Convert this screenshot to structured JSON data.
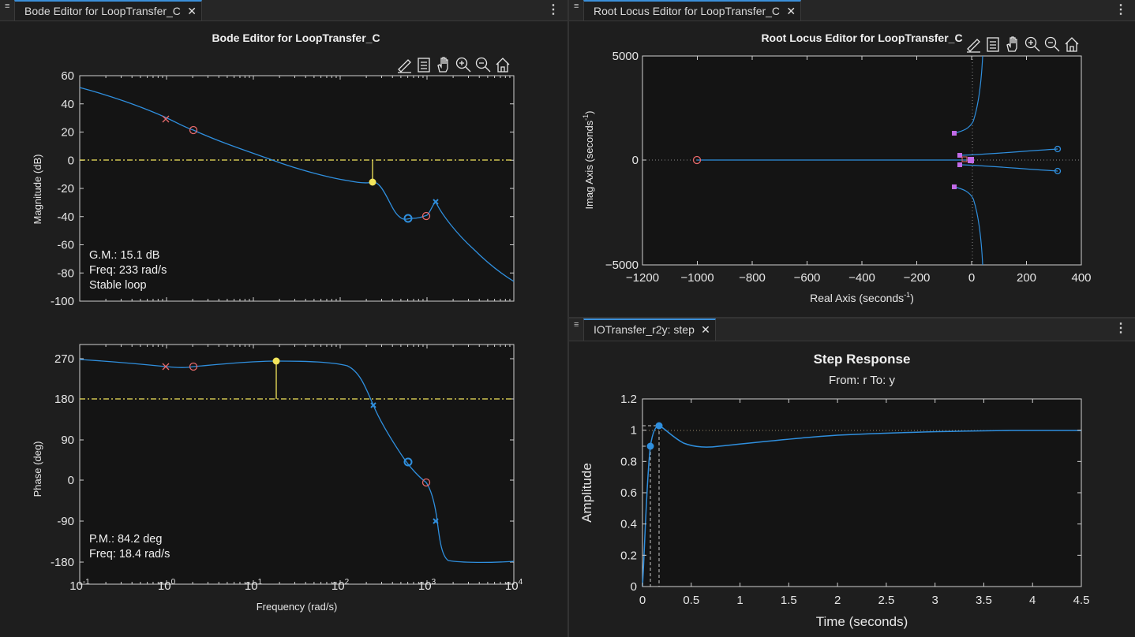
{
  "bode_panel": {
    "tab_label": "Bode Editor for LoopTransfer_C",
    "title": "Bode Editor for LoopTransfer_C",
    "magnitude": {
      "ylabel": "Magnitude (dB)",
      "yticks": [
        "60",
        "40",
        "20",
        "0",
        "-20",
        "-40",
        "-60",
        "-80",
        "-100"
      ],
      "info": [
        "G.M.: 15.1 dB",
        "Freq: 233 rad/s",
        "Stable loop"
      ]
    },
    "phase": {
      "ylabel": "Phase (deg)",
      "yticks": [
        "270",
        "180",
        "90",
        "0",
        "-90",
        "-180"
      ],
      "info": [
        "P.M.: 84.2 deg",
        "Freq: 18.4 rad/s"
      ]
    },
    "xticks": [
      {
        "base": "10",
        "exp": "-1"
      },
      {
        "base": "10",
        "exp": "0"
      },
      {
        "base": "10",
        "exp": "1"
      },
      {
        "base": "10",
        "exp": "2"
      },
      {
        "base": "10",
        "exp": "3"
      },
      {
        "base": "10",
        "exp": "4"
      }
    ],
    "xlabel": "Frequency (rad/s)"
  },
  "rlocus_panel": {
    "tab_label": "Root Locus Editor for LoopTransfer_C",
    "title": "Root Locus Editor for LoopTransfer_C",
    "yticks": [
      "5000",
      "0",
      "−5000"
    ],
    "xticks": [
      "−1200",
      "−1000",
      "−800",
      "−600",
      "−400",
      "−200",
      "0",
      "200",
      "400"
    ],
    "xlabel": "Real Axis (seconds",
    "xlabel_sup": "-1",
    "xlabel_end": ")",
    "ylabel": "Imag Axis (seconds",
    "ylabel_sup": "-1",
    "ylabel_end": ")"
  },
  "step_panel": {
    "tab_label": "IOTransfer_r2y: step",
    "title": "Step Response",
    "subtitle": "From: r  To: y",
    "ylabel": "Amplitude",
    "xlabel": "Time (seconds)",
    "yticks": [
      "1.2",
      "1",
      "0.8",
      "0.6",
      "0.4",
      "0.2",
      "0"
    ],
    "xticks": [
      "0",
      "0.5",
      "1",
      "1.5",
      "2",
      "2.5",
      "3",
      "3.5",
      "4",
      "4.5"
    ]
  },
  "toolbar_icons": [
    "edit-icon",
    "legend-icon",
    "pan-icon",
    "zoom-in-icon",
    "zoom-out-icon",
    "home-icon"
  ],
  "colors": {
    "background": "#1e1e1e",
    "axes_bg": "#141414",
    "curve": "#2f8fde",
    "margin_marker": "#f2e55c",
    "zero_marker": "#e8696b",
    "closed_loop_pole": "#c26be8"
  },
  "chart_data": [
    {
      "type": "line",
      "title": "Bode Editor for LoopTransfer_C",
      "ylabel": "Magnitude (dB)",
      "xlabel": "Frequency (rad/s)",
      "xscale": "log",
      "xlim": [
        0.1,
        10000
      ],
      "ylim": [
        -100,
        60
      ],
      "series": [
        {
          "x": [
            0.1,
            1,
            2,
            10,
            20,
            100,
            233,
            400,
            600,
            1000,
            1300,
            2000,
            5000,
            10000
          ],
          "y": [
            51,
            29,
            21,
            5,
            -1,
            -12,
            -15,
            -29,
            -41,
            -40,
            -29,
            -44,
            -66,
            -84
          ]
        }
      ],
      "markers": {
        "poles": [
          [
            1,
            29
          ],
          [
            1300,
            -29
          ]
        ],
        "zeros": [
          [
            2,
            21
          ],
          [
            1000,
            -39
          ]
        ],
        "complex_zero": [
          [
            600,
            -41
          ]
        ],
        "gain_margin": [
          [
            233,
            -15
          ]
        ]
      }
    },
    {
      "type": "line",
      "ylabel": "Phase (deg)",
      "xlabel": "Frequency (rad/s)",
      "xscale": "log",
      "xlim": [
        0.1,
        10000
      ],
      "ylim": [
        -200,
        300
      ],
      "series": [
        {
          "x": [
            0.1,
            1,
            2,
            18.4,
            60,
            150,
            240,
            400,
            600,
            1000,
            1300,
            1500,
            3000,
            10000
          ],
          "y": [
            266,
            250,
            250,
            264,
            258,
            232,
            166,
            92,
            41,
            -5,
            -90,
            -160,
            -180,
            -180
          ]
        }
      ],
      "markers": {
        "poles": [
          [
            1,
            250
          ],
          [
            240,
            166
          ],
          [
            1300,
            -91
          ]
        ],
        "zeros": [
          [
            2,
            250
          ],
          [
            1000,
            -5
          ]
        ],
        "complex_zero": [
          [
            600,
            41
          ]
        ],
        "phase_margin": [
          [
            18.4,
            264
          ]
        ]
      }
    },
    {
      "type": "scatter",
      "title": "Root Locus Editor for LoopTransfer_C",
      "xlabel": "Real Axis (seconds-1)",
      "ylabel": "Imag Axis (seconds-1)",
      "xlim": [
        -1200,
        400
      ],
      "ylim": [
        -5000,
        5000
      ],
      "zeros": [
        [
          -1000,
          0
        ],
        [
          310,
          540
        ],
        [
          310,
          -540
        ]
      ],
      "closed_loop_poles": [
        [
          -70,
          1290
        ],
        [
          -70,
          -1290
        ],
        [
          -50,
          200
        ],
        [
          -50,
          -200
        ],
        [
          0,
          0
        ],
        [
          -10,
          0
        ]
      ]
    },
    {
      "type": "line",
      "title": "Step Response",
      "xlabel": "Time (seconds)",
      "ylabel": "Amplitude",
      "xlim": [
        0,
        4.5
      ],
      "ylim": [
        0,
        1.2
      ],
      "series": [
        {
          "x": [
            0,
            0.03,
            0.06,
            0.08,
            0.1,
            0.16,
            0.3,
            0.7,
            1,
            1.5,
            2,
            2.5,
            3,
            3.5,
            4,
            4.5
          ],
          "y": [
            0,
            0.5,
            0.8,
            0.9,
            0.97,
            1.03,
            0.93,
            0.89,
            0.9,
            0.93,
            0.96,
            0.98,
            0.99,
            0.995,
            0.998,
            1.0
          ]
        }
      ],
      "rise_time_marker": [
        0.08,
        0.9
      ],
      "peak_marker": [
        0.16,
        1.03
      ]
    }
  ]
}
